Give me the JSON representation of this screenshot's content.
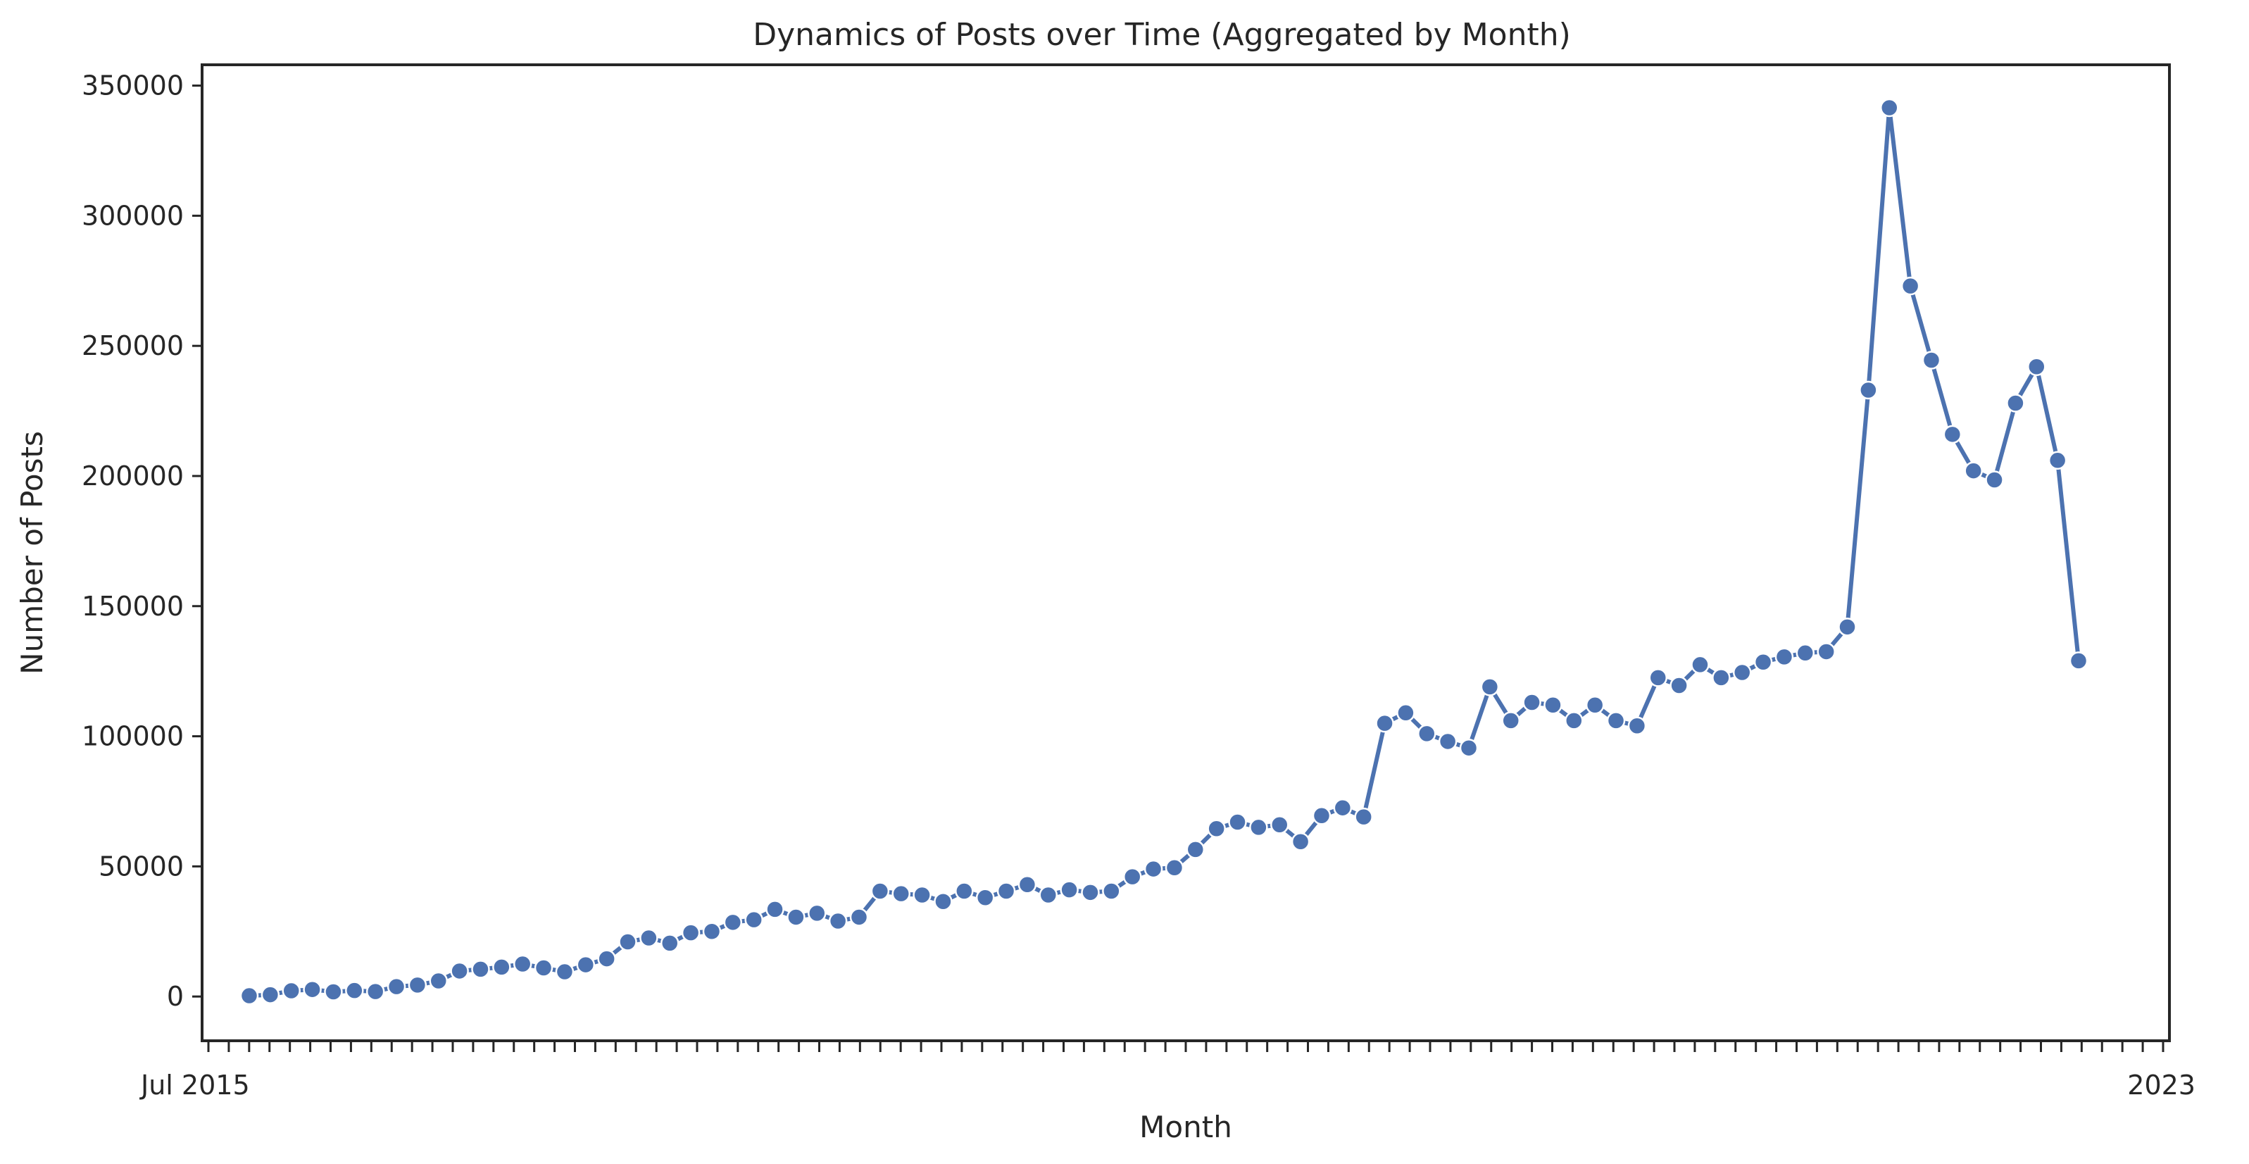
{
  "chart_data": {
    "type": "line",
    "title": "Dynamics of Posts over Time (Aggregated by Month)",
    "xlabel": "Month",
    "ylabel": "Number of Posts",
    "ylim": [
      -17000,
      358000
    ],
    "yticks": [
      0,
      50000,
      100000,
      150000,
      200000,
      250000,
      300000,
      350000
    ],
    "xticks_note": "dense overlapping monthly tick labels",
    "x_start": "Jul 2015",
    "x_end": "2023",
    "grid": false,
    "line_color": "#4C72B0",
    "series": [
      {
        "values": [
          300,
          700,
          2200,
          2700,
          1800,
          2300,
          1900,
          3800,
          4400,
          6000,
          9800,
          10500,
          11300,
          12500,
          11000,
          9500,
          12200,
          14500,
          21000,
          22500,
          20500,
          24500,
          25000,
          28500,
          29500,
          33500,
          30500,
          32000,
          29000,
          30500,
          40500,
          39500,
          39000,
          36500,
          40500,
          38000,
          40500,
          43000,
          39000,
          41000,
          40000,
          40500,
          46000,
          49000,
          49500,
          56500,
          64500,
          67000,
          65000,
          66000,
          59500,
          69500,
          72500,
          69000,
          105000,
          109000,
          101000,
          98000,
          95500,
          119000,
          106000,
          113000,
          112000,
          106000,
          112000,
          106000,
          104000,
          122500,
          119500,
          127500,
          122500,
          124500,
          128500,
          130500,
          132000,
          132500,
          142000,
          233000,
          341500,
          273000,
          244500,
          216000,
          202000,
          198500,
          228000,
          242000,
          206000,
          129000
        ]
      }
    ]
  }
}
